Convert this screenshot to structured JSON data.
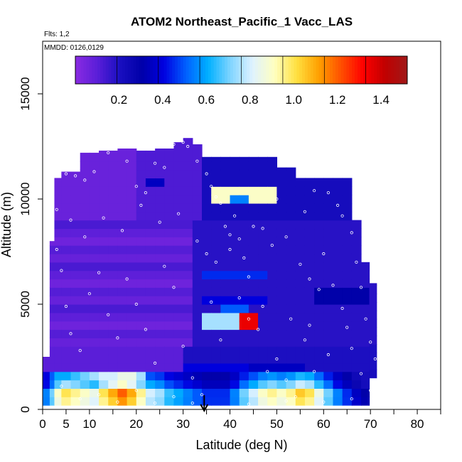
{
  "chart_data": {
    "type": "heatmap",
    "title": "ATOM2 Northeast_Pacific_1 Vacc_LAS",
    "subtitle_flights": "Flts: 1,2",
    "subtitle_dates": "MMDD: 0126,0129",
    "xlabel": "Latitude (deg N)",
    "ylabel": "Altitude (m)",
    "xlim": [
      0,
      85
    ],
    "ylim": [
      0,
      17500
    ],
    "x_ticks": [
      0,
      5,
      10,
      20,
      30,
      40,
      50,
      60,
      70,
      80
    ],
    "x_minor_ticks": [
      15,
      25,
      35,
      45,
      55,
      65,
      75,
      85
    ],
    "y_ticks": [
      0,
      5000,
      10000,
      15000
    ],
    "colorbar": {
      "range": [
        0.0,
        1.52
      ],
      "tick_values": [
        0.2,
        0.4,
        0.6,
        0.8,
        1.0,
        1.2,
        1.4
      ],
      "tick_labels": [
        "0.2",
        "0.4",
        "0.6",
        "0.8",
        "1.0",
        "1.2",
        "1.4"
      ],
      "colors": [
        "#8a2be2",
        "#5a1ed8",
        "#1a0fc0",
        "#0000a8",
        "#0000e0",
        "#0060ff",
        "#00b0ff",
        "#7fd4ff",
        "#dff2ff",
        "#ffffc0",
        "#ffe040",
        "#ffa000",
        "#ff5000",
        "#ff0000",
        "#c00000",
        "#a01818"
      ]
    },
    "marker_latitude": 34.5,
    "profile_columns": [
      {
        "lat": 1,
        "zmin": 200,
        "zmax": 2500,
        "low": 0.55,
        "band": 0.4
      },
      {
        "lat": 2,
        "zmin": 200,
        "zmax": 8000,
        "low": 0.7,
        "band": 0.5
      },
      {
        "lat": 3,
        "zmin": 200,
        "zmax": 11000,
        "low": 0.9,
        "band": 0.6
      },
      {
        "lat": 5,
        "zmin": 200,
        "zmax": 11300,
        "low": 1.0,
        "band": 0.6
      },
      {
        "lat": 7,
        "zmin": 200,
        "zmax": 11300,
        "low": 0.95,
        "band": 0.65
      },
      {
        "lat": 9,
        "zmin": 200,
        "zmax": 12200,
        "low": 0.9,
        "band": 0.7
      },
      {
        "lat": 11,
        "zmin": 200,
        "zmax": 12200,
        "low": 0.85,
        "band": 0.75
      },
      {
        "lat": 13,
        "zmin": 200,
        "zmax": 12300,
        "low": 1.0,
        "band": 0.8
      },
      {
        "lat": 15,
        "zmin": 200,
        "zmax": 12300,
        "low": 1.1,
        "band": 0.8
      },
      {
        "lat": 17,
        "zmin": 200,
        "zmax": 12400,
        "low": 1.2,
        "band": 0.85
      },
      {
        "lat": 19,
        "zmin": 200,
        "zmax": 12400,
        "low": 1.1,
        "band": 0.85
      },
      {
        "lat": 21,
        "zmin": 200,
        "zmax": 12300,
        "low": 0.95,
        "band": 0.75
      },
      {
        "lat": 23,
        "zmin": 200,
        "zmax": 12300,
        "low": 0.8,
        "band": 0.6
      },
      {
        "lat": 25,
        "zmin": 200,
        "zmax": 12400,
        "low": 0.75,
        "band": 0.5
      },
      {
        "lat": 27,
        "zmin": 200,
        "zmax": 12400,
        "low": 0.65,
        "band": 0.4
      },
      {
        "lat": 29,
        "zmin": 200,
        "zmax": 12700,
        "low": 0.6,
        "band": 0.3
      },
      {
        "lat": 31,
        "zmin": 200,
        "zmax": 12900,
        "low": 0.55,
        "band": 0.2
      },
      {
        "lat": 33,
        "zmin": 200,
        "zmax": 12600,
        "low": 0.5,
        "band": 0.2
      },
      {
        "lat": 35,
        "zmin": 200,
        "zmax": 12000,
        "low": 0.45,
        "band": 0.2
      },
      {
        "lat": 37,
        "zmin": 200,
        "zmax": 12000,
        "low": 0.45,
        "band": 0.2
      },
      {
        "lat": 39,
        "zmin": 200,
        "zmax": 12000,
        "low": 0.45,
        "band": 0.2
      },
      {
        "lat": 41,
        "zmin": 200,
        "zmax": 12000,
        "low": 0.55,
        "band": 0.2
      },
      {
        "lat": 43,
        "zmin": 200,
        "zmax": 12000,
        "low": 0.7,
        "band": 0.2
      },
      {
        "lat": 45,
        "zmin": 200,
        "zmax": 12000,
        "low": 0.8,
        "band": 0.2
      },
      {
        "lat": 47,
        "zmin": 200,
        "zmax": 12000,
        "low": 0.9,
        "band": 0.2
      },
      {
        "lat": 49,
        "zmin": 200,
        "zmax": 12000,
        "low": 0.95,
        "band": 0.2
      },
      {
        "lat": 51,
        "zmin": 200,
        "zmax": 11500,
        "low": 0.9,
        "band": 0.2
      },
      {
        "lat": 53,
        "zmin": 200,
        "zmax": 11500,
        "low": 0.95,
        "band": 0.2
      },
      {
        "lat": 55,
        "zmin": 200,
        "zmax": 11000,
        "low": 1.05,
        "band": 0.2
      },
      {
        "lat": 57,
        "zmin": 200,
        "zmax": 11000,
        "low": 1.0,
        "band": 0.2
      },
      {
        "lat": 59,
        "zmin": 200,
        "zmax": 11000,
        "low": 0.85,
        "band": 0.2
      },
      {
        "lat": 61,
        "zmin": 200,
        "zmax": 11000,
        "low": 0.7,
        "band": 0.2
      },
      {
        "lat": 63,
        "zmin": 200,
        "zmax": 11000,
        "low": 0.55,
        "band": 0.2
      },
      {
        "lat": 65,
        "zmin": 200,
        "zmax": 11000,
        "low": 0.45,
        "band": 0.2
      },
      {
        "lat": 67,
        "zmin": 200,
        "zmax": 9000,
        "low": 0.35,
        "band": 0.2
      },
      {
        "lat": 69,
        "zmin": 200,
        "zmax": 7000,
        "low": 0.3,
        "band": 0.2
      },
      {
        "lat": 70.5,
        "zmin": 1500,
        "zmax": 6000,
        "low": 0.3,
        "band": 0.2
      }
    ],
    "features": [
      {
        "lat": [
          37,
          50
        ],
        "alt": [
          10000,
          10700
        ],
        "value": 0.9
      },
      {
        "lat": [
          40,
          44
        ],
        "alt": [
          9800,
          10200
        ],
        "value": 0.55
      },
      {
        "lat": [
          23,
          26
        ],
        "alt": [
          10500,
          11000
        ],
        "value": 0.35
      },
      {
        "lat": [
          35,
          48
        ],
        "alt": [
          6300,
          6800
        ],
        "value": 0.45
      },
      {
        "lat": [
          35,
          47
        ],
        "alt": [
          5200,
          5600
        ],
        "value": 0.4
      },
      {
        "lat": [
          39,
          44
        ],
        "alt": [
          4500,
          4900
        ],
        "value": 0.5
      },
      {
        "lat": [
          43,
          46
        ],
        "alt": [
          4000,
          4550
        ],
        "value": 1.35
      },
      {
        "lat": [
          35,
          42
        ],
        "alt": [
          4000,
          4550
        ],
        "value": 0.75
      },
      {
        "lat": [
          30,
          45
        ],
        "alt": [
          2000,
          2400
        ],
        "value": 0.4
      },
      {
        "lat": [
          45,
          56
        ],
        "alt": [
          2000,
          2400
        ],
        "value": 0.35
      },
      {
        "lat": [
          59,
          70
        ],
        "alt": [
          5000,
          6000
        ],
        "value": 0.3
      }
    ],
    "sample_points": [
      [
        5,
        11200
      ],
      [
        7,
        11100
      ],
      [
        9,
        10900
      ],
      [
        11,
        11300
      ],
      [
        14,
        12200
      ],
      [
        16,
        12500
      ],
      [
        18,
        11800
      ],
      [
        20,
        10600
      ],
      [
        22,
        10300
      ],
      [
        24,
        11700
      ],
      [
        26,
        11500
      ],
      [
        28,
        12600
      ],
      [
        30,
        12700
      ],
      [
        31,
        12500
      ],
      [
        33,
        11800
      ],
      [
        35,
        11200
      ],
      [
        36,
        10600
      ],
      [
        37,
        10100
      ],
      [
        38,
        9800
      ],
      [
        39,
        8700
      ],
      [
        40,
        8300
      ],
      [
        41,
        9200
      ],
      [
        42,
        8100
      ],
      [
        43,
        7200
      ],
      [
        45,
        8700
      ],
      [
        47,
        8600
      ],
      [
        49,
        7800
      ],
      [
        50,
        10000
      ],
      [
        52,
        8200
      ],
      [
        55,
        6900
      ],
      [
        57,
        6200
      ],
      [
        59,
        5700
      ],
      [
        61,
        10300
      ],
      [
        63,
        9700
      ],
      [
        64,
        9200
      ],
      [
        66,
        8400
      ],
      [
        68,
        5800
      ],
      [
        69,
        4300
      ],
      [
        70,
        3200
      ],
      [
        71,
        2400
      ],
      [
        3,
        7600
      ],
      [
        4,
        6600
      ],
      [
        5,
        4900
      ],
      [
        6,
        3600
      ],
      [
        8,
        2800
      ],
      [
        10,
        5500
      ],
      [
        12,
        6500
      ],
      [
        14,
        4500
      ],
      [
        16,
        3400
      ],
      [
        18,
        6200
      ],
      [
        20,
        5000
      ],
      [
        22,
        3800
      ],
      [
        24,
        2200
      ],
      [
        26,
        6800
      ],
      [
        28,
        5800
      ],
      [
        30,
        3000
      ],
      [
        32,
        1500
      ],
      [
        34,
        700
      ],
      [
        36,
        5100
      ],
      [
        38,
        3300
      ],
      [
        40,
        7600
      ],
      [
        42,
        5300
      ],
      [
        44,
        4300
      ],
      [
        46,
        3800
      ],
      [
        48,
        1800
      ],
      [
        50,
        2400
      ],
      [
        52,
        1400
      ],
      [
        54,
        600
      ],
      [
        56,
        3300
      ],
      [
        58,
        1800
      ],
      [
        60,
        7400
      ],
      [
        62,
        5900
      ],
      [
        64,
        4800
      ],
      [
        66,
        2900
      ],
      [
        68,
        1700
      ],
      [
        70,
        900
      ],
      [
        4,
        1100
      ],
      [
        8,
        500
      ],
      [
        12,
        700
      ],
      [
        16,
        350
      ],
      [
        20,
        900
      ],
      [
        24,
        300
      ],
      [
        28,
        600
      ],
      [
        32,
        300
      ],
      [
        44,
        250
      ],
      [
        52,
        400
      ],
      [
        60,
        350
      ],
      [
        66,
        500
      ],
      [
        3,
        9500
      ],
      [
        6,
        9000
      ],
      [
        9,
        8200
      ],
      [
        13,
        9100
      ],
      [
        17,
        8500
      ],
      [
        21,
        9700
      ],
      [
        25,
        8900
      ],
      [
        29,
        9300
      ],
      [
        33,
        8000
      ],
      [
        35,
        7400
      ],
      [
        37,
        7000
      ],
      [
        44,
        6300
      ],
      [
        47,
        4900
      ],
      [
        53,
        4300
      ],
      [
        57,
        4000
      ],
      [
        61,
        2600
      ],
      [
        65,
        3900
      ],
      [
        67,
        7000
      ],
      [
        56,
        9400
      ],
      [
        58,
        10400
      ]
    ]
  }
}
